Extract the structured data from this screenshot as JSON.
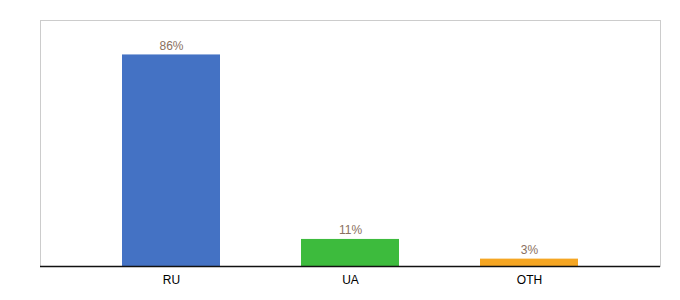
{
  "chart_data": {
    "type": "bar",
    "categories": [
      "RU",
      "UA",
      "OTH"
    ],
    "values": [
      86,
      11,
      3
    ],
    "value_labels": [
      "86%",
      "11%",
      "3%"
    ],
    "data_labels": true,
    "colors": [
      "#4472c4",
      "#3dbb3d",
      "#f5a623"
    ],
    "ylim": [
      0,
      100
    ],
    "tick_labels": "x"
  }
}
